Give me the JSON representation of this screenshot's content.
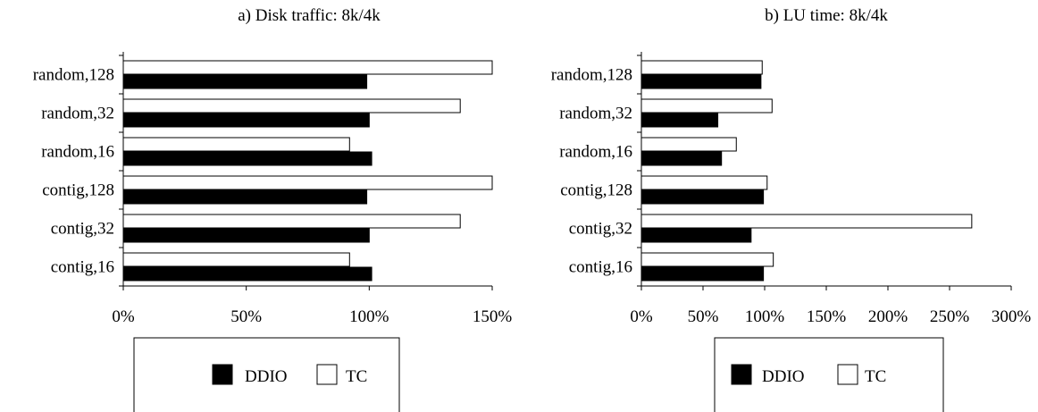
{
  "chart_data": [
    {
      "type": "bar",
      "orientation": "horizontal",
      "title": "a) Disk traffic: 8k/4k",
      "categories": [
        "contig,16",
        "contig,32",
        "contig,128",
        "random,16",
        "random,32",
        "random,128"
      ],
      "series": [
        {
          "name": "DDIO",
          "values": [
            101,
            100,
            99,
            101,
            100,
            99
          ],
          "color": "#000000"
        },
        {
          "name": "TC",
          "values": [
            92,
            137,
            150,
            92,
            137,
            150
          ],
          "color": "#ffffff"
        }
      ],
      "xlim": [
        0,
        150
      ],
      "xticks": [
        0,
        50,
        100,
        150
      ],
      "xtick_labels": [
        "0%",
        "50%",
        "100%",
        "150%"
      ],
      "legend_position": "bottom"
    },
    {
      "type": "bar",
      "orientation": "horizontal",
      "title": "b) LU time: 8k/4k",
      "categories": [
        "contig,16",
        "contig,32",
        "contig,128",
        "random,16",
        "random,32",
        "random,128"
      ],
      "series": [
        {
          "name": "DDIO",
          "values": [
            99,
            89,
            99,
            65,
            62,
            97
          ],
          "color": "#000000"
        },
        {
          "name": "TC",
          "values": [
            107,
            268,
            102,
            77,
            106,
            98
          ],
          "color": "#ffffff"
        }
      ],
      "xlim": [
        0,
        300
      ],
      "xticks": [
        0,
        50,
        100,
        150,
        200,
        250,
        300
      ],
      "xtick_labels": [
        "0%",
        "50%",
        "100%",
        "150%",
        "200%",
        "250%",
        "300%"
      ],
      "legend_position": "bottom"
    }
  ]
}
